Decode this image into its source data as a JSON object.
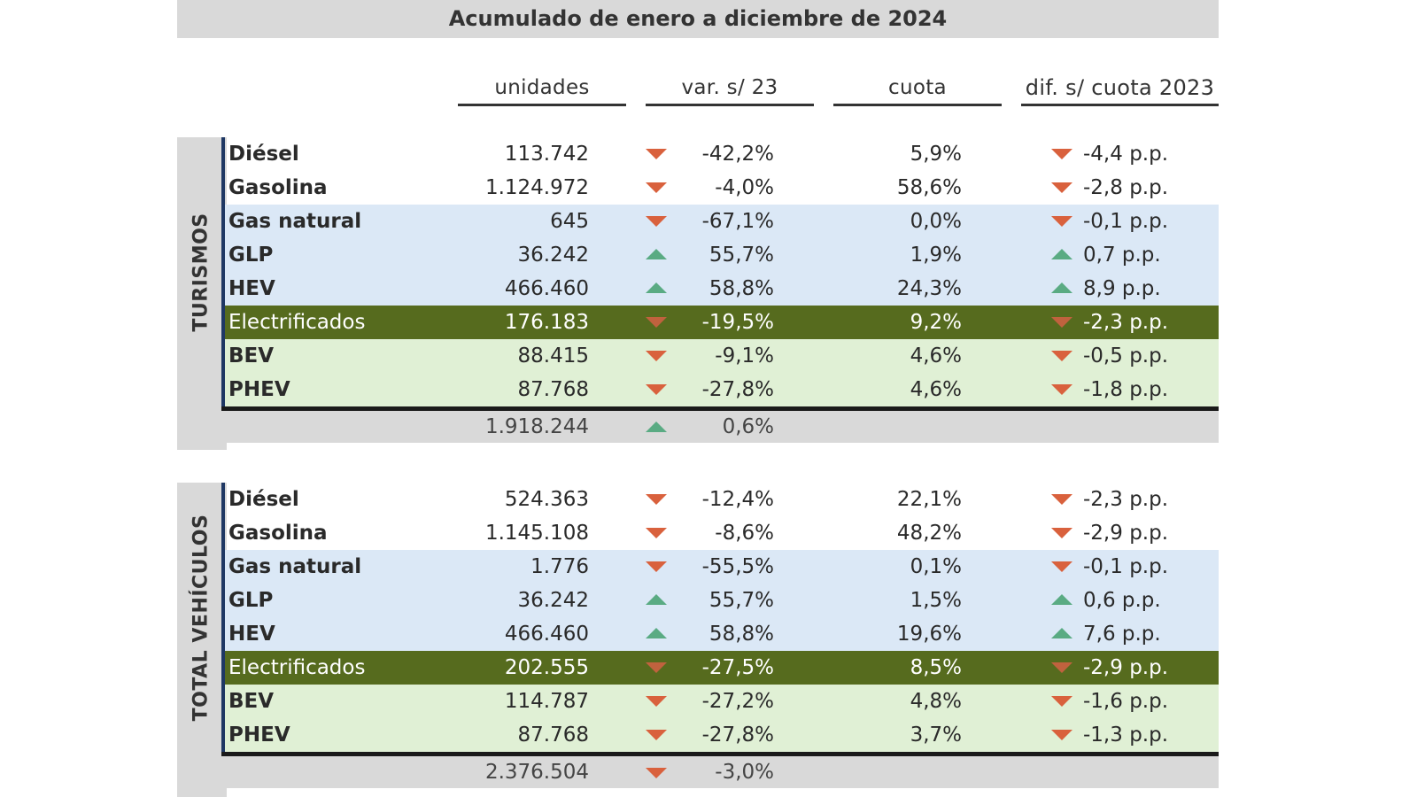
{
  "title": "Acumulado de enero a diciembre de 2024",
  "headers": {
    "unidades": "unidades",
    "var": "var. s/ 23",
    "cuota": "cuota",
    "dif": "dif. s/ cuota 2023"
  },
  "colors": {
    "down_arrow": "#d9613d",
    "up_arrow": "#5aab83",
    "electrificados_bg": "#566b1e",
    "blue_band": "#dbe8f6",
    "green_band": "#e0f0d5",
    "section_border": "#1f3864"
  },
  "sections": [
    {
      "label": "TURISMOS",
      "rows": [
        {
          "name": "Diésel",
          "units": "113.742",
          "var_dir": "down",
          "var": "-42,2%",
          "cuota": "5,9%",
          "dif_dir": "down",
          "dif": "-4,4 p.p.",
          "band": "white"
        },
        {
          "name": "Gasolina",
          "units": "1.124.972",
          "var_dir": "down",
          "var": "-4,0%",
          "cuota": "58,6%",
          "dif_dir": "down",
          "dif": "-2,8 p.p.",
          "band": "white"
        },
        {
          "name": "Gas natural",
          "units": "645",
          "var_dir": "down",
          "var": "-67,1%",
          "cuota": "0,0%",
          "dif_dir": "down",
          "dif": "-0,1 p.p.",
          "band": "blue"
        },
        {
          "name": "GLP",
          "units": "36.242",
          "var_dir": "up",
          "var": "55,7%",
          "cuota": "1,9%",
          "dif_dir": "up",
          "dif": "0,7 p.p.",
          "band": "blue"
        },
        {
          "name": "HEV",
          "units": "466.460",
          "var_dir": "up",
          "var": "58,8%",
          "cuota": "24,3%",
          "dif_dir": "up",
          "dif": "8,9 p.p.",
          "band": "blue"
        },
        {
          "name": "Electrificados",
          "units": "176.183",
          "var_dir": "down",
          "var": "-19,5%",
          "cuota": "9,2%",
          "dif_dir": "down",
          "dif": "-2,3 p.p.",
          "band": "olive"
        },
        {
          "name": "BEV",
          "units": "88.415",
          "var_dir": "down",
          "var": "-9,1%",
          "cuota": "4,6%",
          "dif_dir": "down",
          "dif": "-0,5 p.p.",
          "band": "green"
        },
        {
          "name": "PHEV",
          "units": "87.768",
          "var_dir": "down",
          "var": "-27,8%",
          "cuota": "4,6%",
          "dif_dir": "down",
          "dif": "-1,8 p.p.",
          "band": "green"
        }
      ],
      "total": {
        "units": "1.918.244",
        "var_dir": "up",
        "var": "0,6%"
      }
    },
    {
      "label": "TOTAL VEHÍCULOS",
      "rows": [
        {
          "name": "Diésel",
          "units": "524.363",
          "var_dir": "down",
          "var": "-12,4%",
          "cuota": "22,1%",
          "dif_dir": "down",
          "dif": "-2,3 p.p.",
          "band": "white"
        },
        {
          "name": "Gasolina",
          "units": "1.145.108",
          "var_dir": "down",
          "var": "-8,6%",
          "cuota": "48,2%",
          "dif_dir": "down",
          "dif": "-2,9 p.p.",
          "band": "white"
        },
        {
          "name": "Gas natural",
          "units": "1.776",
          "var_dir": "down",
          "var": "-55,5%",
          "cuota": "0,1%",
          "dif_dir": "down",
          "dif": "-0,1 p.p.",
          "band": "blue"
        },
        {
          "name": "GLP",
          "units": "36.242",
          "var_dir": "up",
          "var": "55,7%",
          "cuota": "1,5%",
          "dif_dir": "up",
          "dif": "0,6 p.p.",
          "band": "blue"
        },
        {
          "name": "HEV",
          "units": "466.460",
          "var_dir": "up",
          "var": "58,8%",
          "cuota": "19,6%",
          "dif_dir": "up",
          "dif": "7,6 p.p.",
          "band": "blue"
        },
        {
          "name": "Electrificados",
          "units": "202.555",
          "var_dir": "down",
          "var": "-27,5%",
          "cuota": "8,5%",
          "dif_dir": "down",
          "dif": "-2,9 p.p.",
          "band": "olive"
        },
        {
          "name": "BEV",
          "units": "114.787",
          "var_dir": "down",
          "var": "-27,2%",
          "cuota": "4,8%",
          "dif_dir": "down",
          "dif": "-1,6 p.p.",
          "band": "green"
        },
        {
          "name": "PHEV",
          "units": "87.768",
          "var_dir": "down",
          "var": "-27,8%",
          "cuota": "3,7%",
          "dif_dir": "down",
          "dif": "-1,3 p.p.",
          "band": "green"
        }
      ],
      "total": {
        "units": "2.376.504",
        "var_dir": "down",
        "var": "-3,0%"
      }
    }
  ]
}
